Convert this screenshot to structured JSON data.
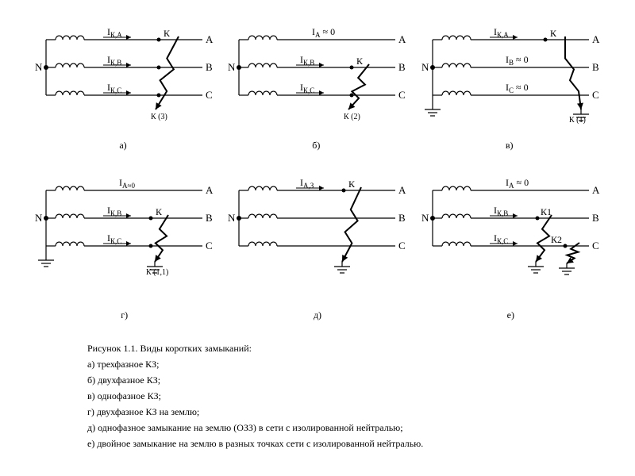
{
  "style": {
    "background_color": "#ffffff",
    "stroke_color": "#000000",
    "text_color": "#000000",
    "stroke_width": 1.2,
    "font_family": "Times New Roman, serif",
    "label_fontsize": 12,
    "phase_fontsize": 13,
    "neutral_fontsize": 13,
    "caption_fontsize": 12
  },
  "phases": {
    "A": "A",
    "B": "B",
    "C": "C"
  },
  "neutral_label": "N",
  "diagrams": [
    {
      "id": "a",
      "sublabel": "а)",
      "lines": [
        {
          "current_label": "I_К,А",
          "arrow": true,
          "zero": false
        },
        {
          "current_label": "I_К,В",
          "arrow": true,
          "zero": false
        },
        {
          "current_label": "I_К,С",
          "arrow": true,
          "zero": false
        }
      ],
      "fault": {
        "type": "3ph",
        "k_label": "К",
        "k_sub": "К (3)",
        "ground": false
      }
    },
    {
      "id": "b",
      "sublabel": "б)",
      "lines": [
        {
          "current_label": "I_А ≈ 0",
          "arrow": false,
          "zero": true
        },
        {
          "current_label": "I_К,В",
          "arrow": true,
          "zero": false
        },
        {
          "current_label": "I_К,С",
          "arrow": true,
          "zero": false
        }
      ],
      "fault": {
        "type": "2ph_bc",
        "k_label": "К",
        "k_sub": "К (2)",
        "ground": false
      }
    },
    {
      "id": "v",
      "sublabel": "в)",
      "lines": [
        {
          "current_label": "I_К,А",
          "arrow": true,
          "zero": false
        },
        {
          "current_label": "I_В ≈ 0",
          "arrow": false,
          "zero": true
        },
        {
          "current_label": "I_С ≈ 0",
          "arrow": false,
          "zero": true
        }
      ],
      "fault": {
        "type": "1ph_a",
        "k_label": "К",
        "k_sub": "К (1)",
        "ground": true,
        "neutral_ground": true
      }
    },
    {
      "id": "g",
      "sublabel": "г)",
      "lines": [
        {
          "current_label": "I_А≈0",
          "arrow": false,
          "zero": true
        },
        {
          "current_label": "I_К,В",
          "arrow": true,
          "zero": false
        },
        {
          "current_label": "I_К,С",
          "arrow": true,
          "zero": false
        }
      ],
      "fault": {
        "type": "2ph_bc_g",
        "k_label": "К",
        "k_sub": "К (1,1)",
        "ground": true,
        "neutral_ground": true
      }
    },
    {
      "id": "d",
      "sublabel": "д)",
      "lines": [
        {
          "current_label": "I_А,З",
          "arrow": true,
          "zero": false
        },
        {
          "current_label": "",
          "arrow": false,
          "zero": false
        },
        {
          "current_label": "",
          "arrow": false,
          "zero": false
        }
      ],
      "fault": {
        "type": "1ph_a_iso",
        "k_label": "К",
        "k_sub": "",
        "ground": true,
        "neutral_ground": false
      }
    },
    {
      "id": "e",
      "sublabel": "е)",
      "lines": [
        {
          "current_label": "I_А ≈ 0",
          "arrow": false,
          "zero": true
        },
        {
          "current_label": "I_К,В",
          "arrow": true,
          "zero": false
        },
        {
          "current_label": "I_К,С",
          "arrow": true,
          "zero": false
        }
      ],
      "fault": {
        "type": "double_bc",
        "k1_label": "К1",
        "k2_label": "К2",
        "ground": true,
        "neutral_ground": false
      }
    }
  ],
  "caption": {
    "title": "Рисунок 1.1. Виды коротких замыканий:",
    "items": [
      "а) трехфазное КЗ;",
      "б) двухфазное КЗ;",
      "в) однофазное КЗ;",
      "г) двухфазное КЗ на землю;",
      "д) однофазное замыкание на землю (ОЗЗ) в сети с изолированной нейтралью;",
      "е) двойное замыкание на землю в разных точках сети с изолированной нейтралью."
    ]
  }
}
